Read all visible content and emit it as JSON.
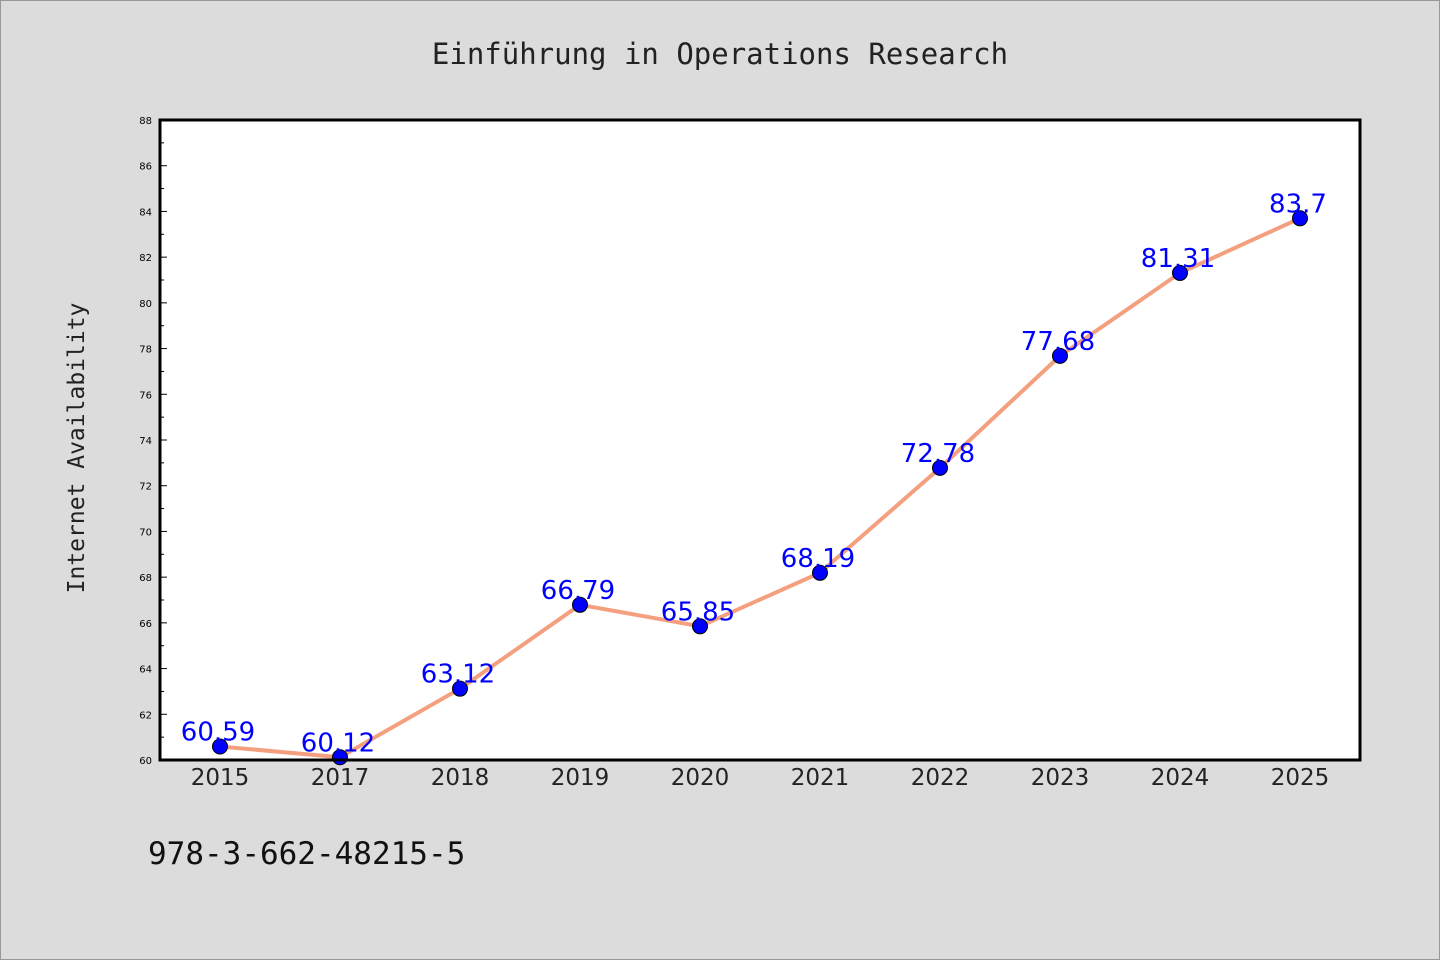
{
  "chart_data": {
    "type": "line",
    "title": "Einführung in Operations Research",
    "xlabel": "",
    "ylabel": "Internet Availability",
    "categories": [
      "2015",
      "2017",
      "2018",
      "2019",
      "2020",
      "2021",
      "2022",
      "2023",
      "2024",
      "2025"
    ],
    "series": [
      {
        "values": [
          60.59,
          60.12,
          63.12,
          66.79,
          65.85,
          68.19,
          72.78,
          77.68,
          81.31,
          83.7
        ],
        "line_color": "#f4a07f",
        "marker_color": "#0000ff"
      }
    ],
    "ylim": [
      60,
      88
    ],
    "yticks": [
      60,
      62,
      64,
      66,
      68,
      70,
      72,
      74,
      76,
      78,
      80,
      82,
      84,
      86,
      88
    ],
    "grid": false,
    "legend": "none",
    "data_labels": [
      "60.59",
      "60.12",
      "63.12",
      "66.79",
      "65.85",
      "68.19",
      "72.78",
      "77.68",
      "81.31",
      "83.7"
    ]
  },
  "footer": {
    "isbn": "978-3-662-48215-5"
  },
  "colors": {
    "background": "#dcdcdc",
    "plot_background": "#ffffff"
  }
}
